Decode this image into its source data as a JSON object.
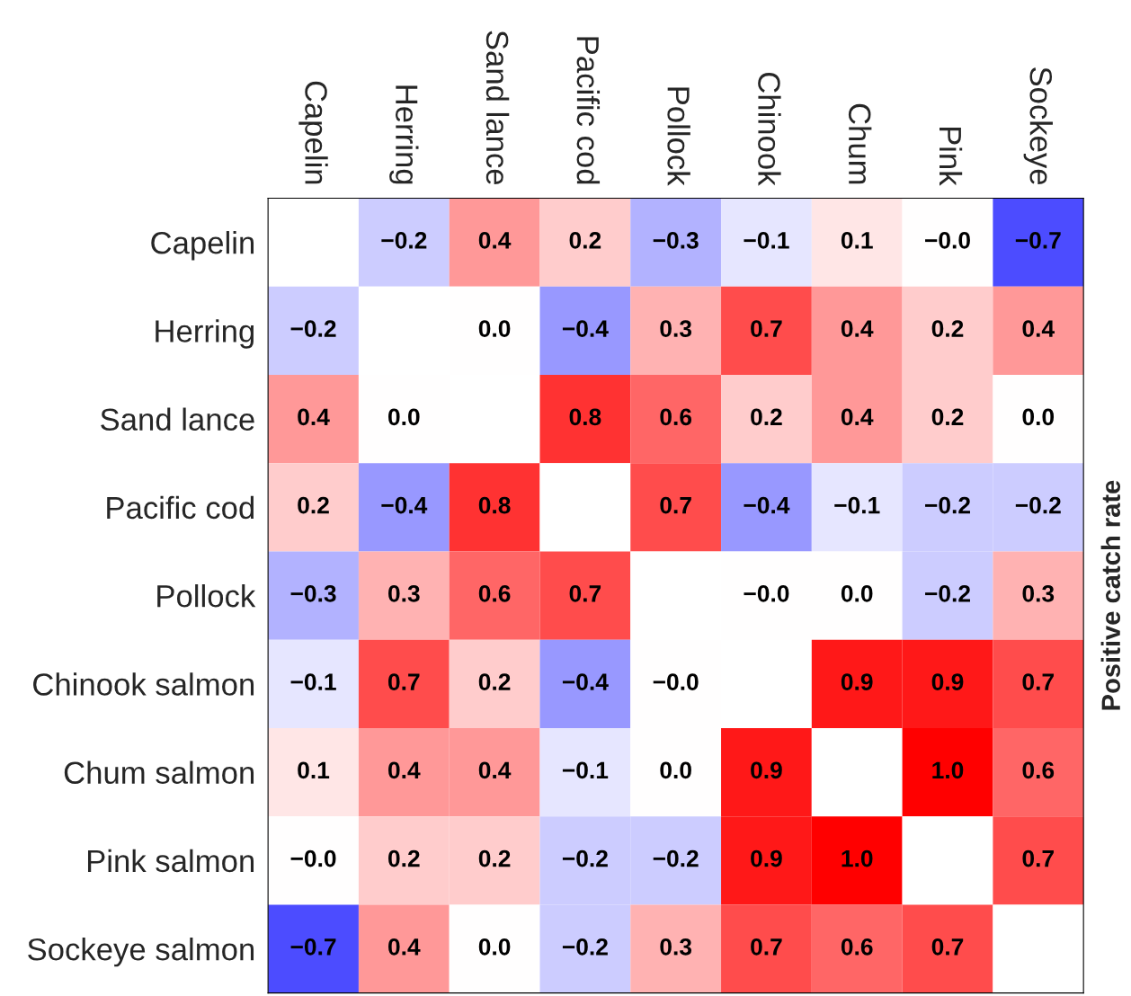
{
  "chart_data": {
    "type": "heatmap",
    "y2label": "Positive catch rate",
    "categories": [
      "Capelin",
      "Herring",
      "Sand lance",
      "Pacific cod",
      "Pollock",
      "Chinook",
      "Chum",
      "Pink",
      "Sockeye"
    ],
    "y_categories": [
      "Capelin",
      "Herring",
      "Sand lance",
      "Pacific cod",
      "Pollock",
      "Chinook salmon",
      "Chum salmon",
      "Pink salmon",
      "Sockeye salmon"
    ],
    "cells": [
      [
        null,
        -0.2,
        0.4,
        0.2,
        -0.3,
        -0.1,
        0.1,
        -0.0,
        -0.7
      ],
      [
        -0.2,
        null,
        0.0,
        -0.4,
        0.3,
        0.7,
        0.4,
        0.2,
        0.4
      ],
      [
        0.4,
        0.0,
        null,
        0.8,
        0.6,
        0.2,
        0.4,
        0.2,
        0.0
      ],
      [
        0.2,
        -0.4,
        0.8,
        null,
        0.7,
        -0.4,
        -0.1,
        -0.2,
        -0.2
      ],
      [
        -0.3,
        0.3,
        0.6,
        0.7,
        null,
        -0.0,
        0.0,
        -0.2,
        0.3
      ],
      [
        -0.1,
        0.7,
        0.2,
        -0.4,
        -0.0,
        null,
        0.9,
        0.9,
        0.7
      ],
      [
        0.1,
        0.4,
        0.4,
        -0.1,
        0.0,
        0.9,
        null,
        1.0,
        0.6
      ],
      [
        -0.0,
        0.2,
        0.2,
        -0.2,
        -0.2,
        0.9,
        1.0,
        null,
        0.7
      ],
      [
        -0.7,
        0.4,
        0.0,
        -0.2,
        0.3,
        0.7,
        0.6,
        0.7,
        null
      ]
    ],
    "cell_labels": [
      [
        null,
        "−0.2",
        "0.4",
        "0.2",
        "−0.3",
        "−0.1",
        "0.1",
        "−0.0",
        "−0.7"
      ],
      [
        "−0.2",
        null,
        "0.0",
        "−0.4",
        "0.3",
        "0.7",
        "0.4",
        "0.2",
        "0.4"
      ],
      [
        "0.4",
        "0.0",
        null,
        "0.8",
        "0.6",
        "0.2",
        "0.4",
        "0.2",
        "0.0"
      ],
      [
        "0.2",
        "−0.4",
        "0.8",
        null,
        "0.7",
        "−0.4",
        "−0.1",
        "−0.2",
        "−0.2"
      ],
      [
        "−0.3",
        "0.3",
        "0.6",
        "0.7",
        null,
        "−0.0",
        "0.0",
        "−0.2",
        "0.3"
      ],
      [
        "−0.1",
        "0.7",
        "0.2",
        "−0.4",
        "−0.0",
        null,
        "0.9",
        "0.9",
        "0.7"
      ],
      [
        "0.1",
        "0.4",
        "0.4",
        "−0.1",
        "0.0",
        "0.9",
        null,
        "1.0",
        "0.6"
      ],
      [
        "−0.0",
        "0.2",
        "0.2",
        "−0.2",
        "−0.2",
        "0.9",
        "1.0",
        null,
        "0.7"
      ],
      [
        "−0.7",
        "0.4",
        "0.0",
        "−0.2",
        "0.3",
        "0.7",
        "0.6",
        "0.7",
        null
      ]
    ]
  }
}
